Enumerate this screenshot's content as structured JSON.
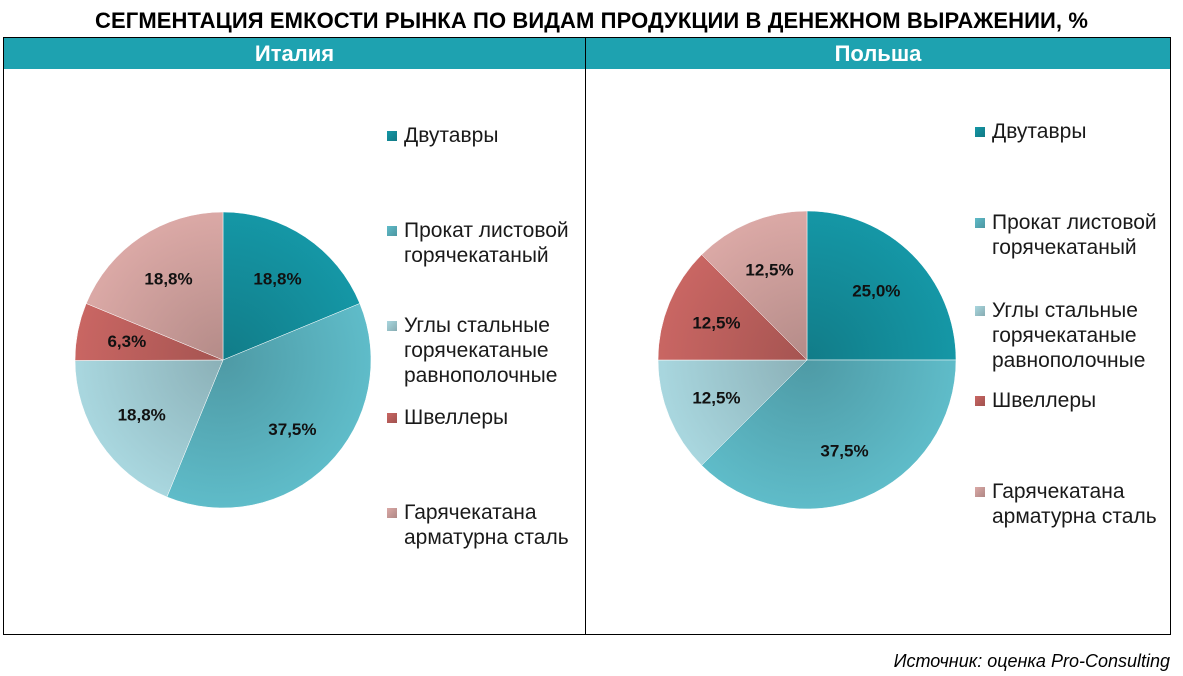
{
  "title": "СЕГМЕНТАЦИЯ ЕМКОСТИ РЫНКА ПО ВИДАМ ПРОДУКЦИИ В ДЕНЕЖНОМ ВЫРАЖЕНИИ, %",
  "source": "Источник: оценка Pro-Consulting",
  "chart_data": [
    {
      "type": "pie",
      "title": "Италия",
      "categories": [
        "Двутавры",
        "Прокат листовой горячекатаный",
        "Углы стальные горячекатаные равнополочные",
        "Швеллеры",
        "Гарячекатана арматурна сталь"
      ],
      "values": [
        18.8,
        37.5,
        18.8,
        6.3,
        18.8
      ],
      "labels": [
        "18,8%",
        "37,5%",
        "18,8%",
        "6,3%",
        "18,8%"
      ],
      "colors": [
        "#1597a6",
        "#5fbcc9",
        "#a9d7df",
        "#c96663",
        "#dba9a6"
      ],
      "legend_position": "right"
    },
    {
      "type": "pie",
      "title": "Польша",
      "categories": [
        "Двутавры",
        "Прокат листовой горячекатаный",
        "Углы стальные горячекатаные равнополочные",
        "Швеллеры",
        "Гарячекатана арматурна сталь"
      ],
      "values": [
        25.0,
        37.5,
        12.5,
        12.5,
        12.5
      ],
      "labels": [
        "25,0%",
        "37,5%",
        "12,5%",
        "12,5%",
        "12,5%"
      ],
      "colors": [
        "#1597a6",
        "#5fbcc9",
        "#a9d7df",
        "#c96663",
        "#dba9a6"
      ],
      "legend_position": "right"
    }
  ]
}
